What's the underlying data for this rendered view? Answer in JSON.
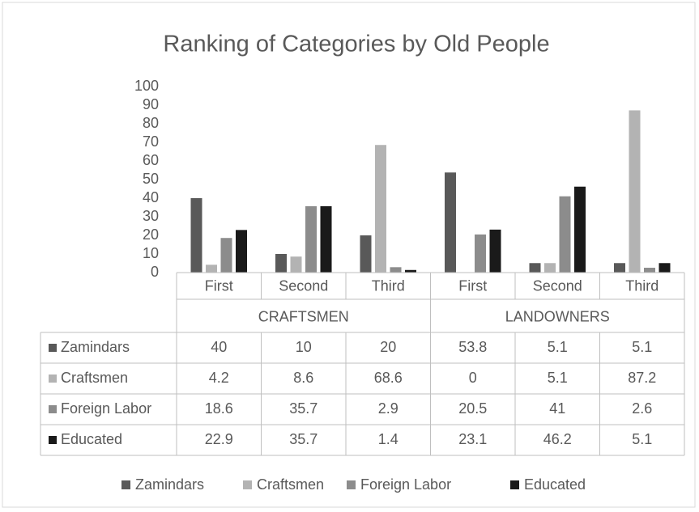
{
  "chart_data": {
    "type": "bar",
    "title": "Ranking of Categories by Old People",
    "categories": [
      "First",
      "Second",
      "Third",
      "First",
      "Second",
      "Third"
    ],
    "groups": [
      "CRAFTSMEN",
      "LANDOWNERS"
    ],
    "series": [
      {
        "name": "Zamindars",
        "color": "#595959",
        "values": [
          40,
          10,
          20,
          53.8,
          5.1,
          5.1
        ]
      },
      {
        "name": "Craftsmen",
        "color": "#b3b3b3",
        "values": [
          4.2,
          8.6,
          68.6,
          0,
          5.1,
          87.2
        ]
      },
      {
        "name": "Foreign Labor",
        "color": "#8c8c8c",
        "values": [
          18.6,
          35.7,
          2.9,
          20.5,
          41,
          2.6
        ]
      },
      {
        "name": "Educated",
        "color": "#1a1a1a",
        "values": [
          22.9,
          35.7,
          1.4,
          23.1,
          46.2,
          5.1
        ]
      }
    ],
    "ylim": [
      0,
      100
    ],
    "yticks": [
      0,
      10,
      20,
      30,
      40,
      50,
      60,
      70,
      80,
      90,
      100
    ],
    "grid": false,
    "legend": "bottom"
  }
}
